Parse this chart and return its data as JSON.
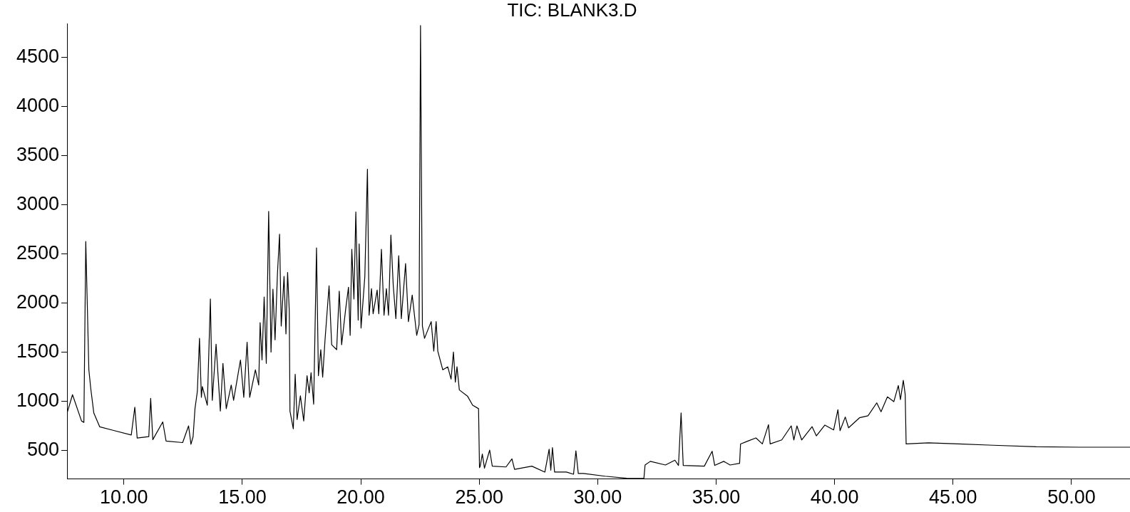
{
  "chart_data": {
    "type": "line",
    "title": "TIC: BLANK3.D",
    "x": [
      7.6,
      7.83,
      8.21,
      8.31,
      8.39,
      8.52,
      8.6,
      8.73,
      8.98,
      9.54,
      10.31,
      10.46,
      10.56,
      11.05,
      11.13,
      11.22,
      11.64,
      11.78,
      12.48,
      12.73,
      12.83,
      12.92,
      13.0,
      13.1,
      13.19,
      13.27,
      13.31,
      13.52,
      13.65,
      13.73,
      13.89,
      14.07,
      14.18,
      14.32,
      14.53,
      14.63,
      14.92,
      15.06,
      15.2,
      15.31,
      15.55,
      15.69,
      15.75,
      15.83,
      15.92,
      16.01,
      16.11,
      16.21,
      16.29,
      16.38,
      16.48,
      16.57,
      16.64,
      16.76,
      16.84,
      16.91,
      16.98,
      17.01,
      17.15,
      17.23,
      17.31,
      17.45,
      17.59,
      17.73,
      17.82,
      17.9,
      18.01,
      18.13,
      18.21,
      18.31,
      18.39,
      18.49,
      18.66,
      18.77,
      18.98,
      19.09,
      19.19,
      19.36,
      19.48,
      19.55,
      19.62,
      19.71,
      19.79,
      19.89,
      19.93,
      20.01,
      20.17,
      20.28,
      20.35,
      20.45,
      20.52,
      20.69,
      20.76,
      20.87,
      20.98,
      21.08,
      21.17,
      21.27,
      21.37,
      21.48,
      21.6,
      21.71,
      21.89,
      22.01,
      22.17,
      22.36,
      22.46,
      22.52,
      22.6,
      22.69,
      22.97,
      23.08,
      23.18,
      23.25,
      23.46,
      23.67,
      23.81,
      23.91,
      23.99,
      24.06,
      24.16,
      24.51,
      24.72,
      24.97,
      25.01,
      25.04,
      25.13,
      25.22,
      25.44,
      25.55,
      26.13,
      26.38,
      26.49,
      27.22,
      27.77,
      27.95,
      28.02,
      28.09,
      28.18,
      28.68,
      28.98,
      29.08,
      29.18,
      29.4,
      30.31,
      31.22,
      31.95,
      32.0,
      32.22,
      32.86,
      33.26,
      33.41,
      33.52,
      33.61,
      34.5,
      34.83,
      34.94,
      35.32,
      35.59,
      35.99,
      36.03,
      36.32,
      36.68,
      36.95,
      37.21,
      37.28,
      37.77,
      38.17,
      38.28,
      38.41,
      38.61,
      39.05,
      39.23,
      39.59,
      39.96,
      40.14,
      40.23,
      40.45,
      40.59,
      41.05,
      41.41,
      41.78,
      41.96,
      42.23,
      42.5,
      42.69,
      42.78,
      42.9,
      42.98,
      43.02,
      43.96,
      45.23,
      46.69,
      48.51,
      50.33,
      52.47
    ],
    "series": [
      {
        "color": "#000000",
        "values": [
          880,
          1067,
          800,
          785,
          2625,
          1320,
          1130,
          880,
          740,
          705,
          657,
          940,
          626,
          640,
          1030,
          610,
          790,
          595,
          580,
          750,
          563,
          640,
          925,
          1100,
          1640,
          1040,
          1150,
          960,
          2040,
          1010,
          1580,
          900,
          1385,
          925,
          1165,
          1010,
          1420,
          1040,
          1600,
          1040,
          1320,
          1165,
          1800,
          1420,
          2060,
          1385,
          2930,
          1500,
          2140,
          1625,
          2290,
          2700,
          1765,
          2270,
          1685,
          2310,
          1920,
          900,
          720,
          1275,
          815,
          1055,
          800,
          1260,
          1085,
          1290,
          970,
          2560,
          1260,
          1525,
          1245,
          1625,
          2175,
          1575,
          1525,
          2120,
          1575,
          1935,
          2160,
          1670,
          2545,
          2040,
          2925,
          1825,
          2600,
          1745,
          2270,
          3360,
          1875,
          2145,
          1890,
          2130,
          1890,
          2545,
          1875,
          2145,
          1875,
          2690,
          2175,
          1840,
          2480,
          1840,
          2400,
          1810,
          2080,
          1670,
          1780,
          4820,
          1765,
          1640,
          1810,
          1510,
          1810,
          1510,
          1320,
          1350,
          1225,
          1500,
          1195,
          1350,
          1115,
          1050,
          960,
          925,
          325,
          340,
          463,
          320,
          504,
          340,
          332,
          414,
          307,
          340,
          280,
          512,
          299,
          529,
          280,
          280,
          258,
          496,
          266,
          266,
          238,
          217,
          215,
          352,
          389,
          352,
          401,
          348,
          881,
          348,
          340,
          492,
          348,
          389,
          352,
          369,
          566,
          594,
          627,
          566,
          762,
          566,
          607,
          750,
          607,
          750,
          607,
          742,
          648,
          758,
          709,
          914,
          701,
          840,
          730,
          832,
          852,
          984,
          894,
          1045,
          996,
          1160,
          1017,
          1213,
          1070,
          566,
          578,
          566,
          553,
          537,
          533,
          533
        ]
      }
    ],
    "xlim": [
      7.6,
      52.47
    ],
    "ylim": [
      210,
      4840
    ],
    "xticks": [
      {
        "value": 10,
        "label": "10.00"
      },
      {
        "value": 15,
        "label": "15.00"
      },
      {
        "value": 20,
        "label": "20.00"
      },
      {
        "value": 25,
        "label": "25.00"
      },
      {
        "value": 30,
        "label": "30.00"
      },
      {
        "value": 35,
        "label": "35.00"
      },
      {
        "value": 40,
        "label": "40.00"
      },
      {
        "value": 45,
        "label": "45.00"
      },
      {
        "value": 50,
        "label": "50.00"
      }
    ],
    "yticks": [
      500,
      1000,
      1500,
      2000,
      2500,
      3000,
      3500,
      4000,
      4500
    ],
    "grid": false,
    "legend": false,
    "marker": "none",
    "line_style": "solid"
  }
}
